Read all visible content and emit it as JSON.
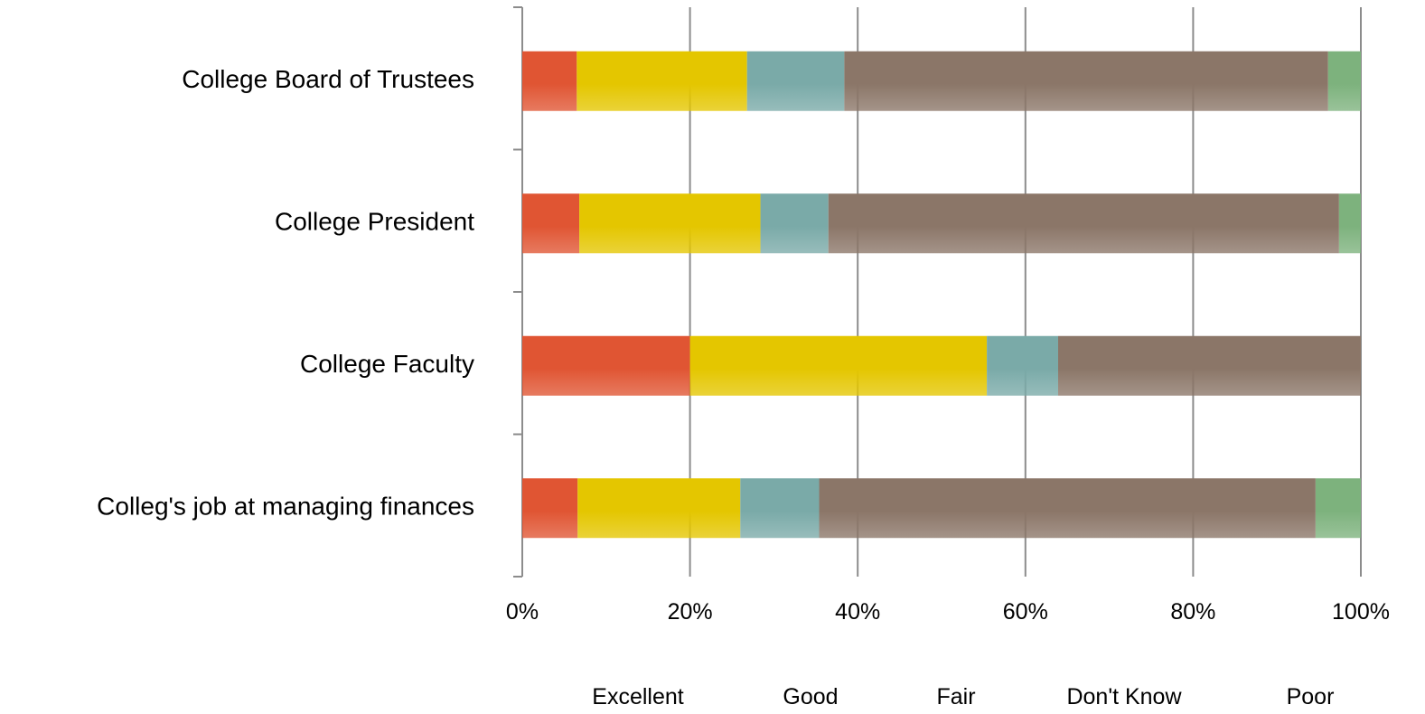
{
  "colors": {
    "Excellent": "#e05533",
    "Good": "#e4c600",
    "Fair": "#7aaaa8",
    "Don't Know": "#8b7668",
    "Poor": "#7db27d",
    "gridline": "#8c8c8c",
    "axis": "#8c8c8c"
  },
  "chart_data": {
    "type": "bar",
    "orientation": "horizontal",
    "stacked": true,
    "percent_stacked": true,
    "title": "",
    "xlabel": "",
    "ylabel": "",
    "xlim": [
      0,
      100
    ],
    "x_ticks": [
      "0%",
      "20%",
      "40%",
      "60%",
      "80%",
      "100%"
    ],
    "grid": true,
    "legend_position": "bottom",
    "categories": [
      "College Board of Trustees",
      "College President",
      "College Faculty",
      "Colleg's job at managing finances"
    ],
    "series": [
      {
        "name": "Excellent",
        "values": [
          6.5,
          6.8,
          20.0,
          6.6
        ]
      },
      {
        "name": "Good",
        "values": [
          20.3,
          21.6,
          35.4,
          19.4
        ]
      },
      {
        "name": "Fair",
        "values": [
          11.6,
          8.1,
          8.5,
          9.4
        ]
      },
      {
        "name": "Don't Know",
        "values": [
          57.7,
          60.9,
          36.1,
          59.2
        ]
      },
      {
        "name": "Poor",
        "values": [
          3.9,
          2.6,
          0.0,
          5.4
        ]
      }
    ]
  }
}
